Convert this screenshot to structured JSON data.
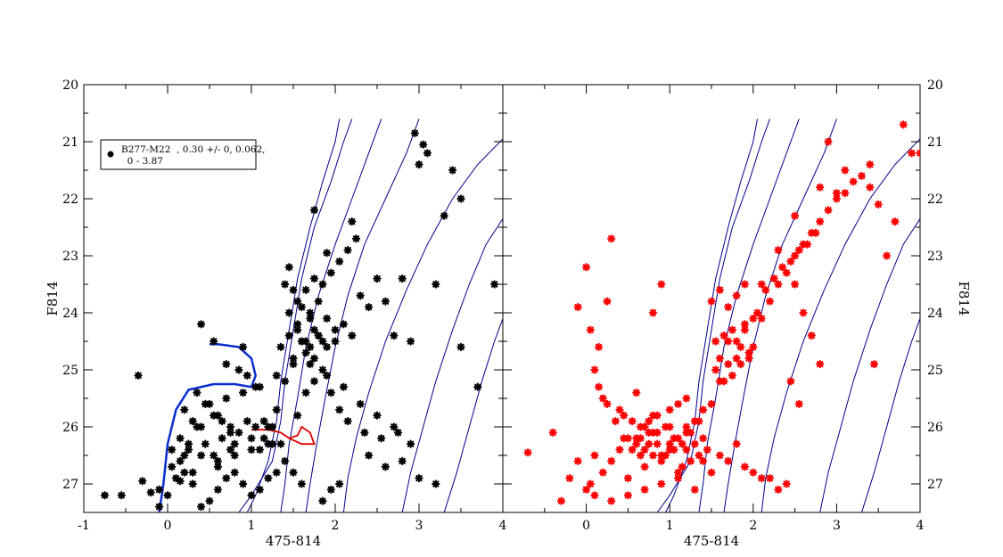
{
  "chart_data": [
    {
      "type": "scatter",
      "panel": "left",
      "xlabel": "475-814",
      "ylabel": "F814",
      "xlim": [
        -1,
        4
      ],
      "ylim": [
        27.5,
        20
      ],
      "xticks": [
        "-1",
        "0",
        "1",
        "2",
        "3",
        "4"
      ],
      "yticks": [
        "20",
        "21",
        "22",
        "23",
        "24",
        "25",
        "26",
        "27"
      ],
      "grid": false,
      "legend": {
        "position": "top-left",
        "lines": [
          "B277-M22  , 0.30 +/- 0, 0.062,",
          "  0 - 3.87"
        ]
      },
      "point_color": "#000000",
      "blue_track": [
        [
          -0.1,
          27.5
        ],
        [
          -0.05,
          27.0
        ],
        [
          0.0,
          26.3
        ],
        [
          0.1,
          25.7
        ],
        [
          0.25,
          25.35
        ],
        [
          0.55,
          25.25
        ],
        [
          0.8,
          25.25
        ],
        [
          1.0,
          25.3
        ],
        [
          1.05,
          25.1
        ],
        [
          1.0,
          24.8
        ],
        [
          0.85,
          24.6
        ],
        [
          0.6,
          24.55
        ],
        [
          0.5,
          24.55
        ]
      ],
      "red_track": [
        [
          1.0,
          26.05
        ],
        [
          1.2,
          26.05
        ],
        [
          1.35,
          26.1
        ],
        [
          1.45,
          26.2
        ],
        [
          1.55,
          26.15
        ],
        [
          1.6,
          26.0
        ],
        [
          1.7,
          26.1
        ],
        [
          1.75,
          26.3
        ],
        [
          1.6,
          26.3
        ],
        [
          1.45,
          26.2
        ]
      ],
      "x": [
        -0.75,
        -0.55,
        -0.3,
        -0.2,
        -0.1,
        -0.35,
        0.05,
        0.15,
        0.2,
        0.3,
        0.4,
        0.6,
        0.8,
        1.0,
        1.1,
        1.2,
        1.3,
        1.4,
        1.5,
        1.55,
        1.6,
        1.7,
        1.8,
        1.9,
        2.0,
        2.1,
        2.2,
        2.3,
        2.4,
        2.5,
        2.6,
        2.7,
        2.8,
        2.9,
        3.0,
        3.1,
        3.2,
        3.3,
        3.5,
        3.7,
        3.9,
        2.95,
        3.05,
        3.4,
        3.5,
        2.2,
        1.9,
        1.75,
        1.45,
        0.4,
        0.55,
        0.7,
        0.9,
        0.35,
        0.45,
        0.6,
        0.75,
        1.15,
        1.25,
        1.35,
        1.55,
        1.65,
        1.75,
        1.85,
        1.95,
        2.05,
        2.15,
        2.35,
        2.55,
        2.75,
        2.05,
        1.95,
        1.85,
        1.6,
        1.5,
        1.4,
        1.3,
        1.2,
        1.1,
        1.0,
        0.9,
        0.8,
        0.7,
        0.6,
        0.5,
        0.4,
        0.3,
        0.2,
        0.1,
        0.0,
        -0.1,
        0.85,
        0.95,
        1.05,
        1.45,
        1.55,
        1.65,
        1.75,
        1.85,
        1.95,
        2.05,
        2.15,
        2.25,
        0.15,
        0.25,
        0.35,
        0.45,
        0.55,
        0.65,
        0.75,
        0.85,
        0.95,
        1.05,
        1.15,
        1.25,
        0.2,
        0.3,
        0.5,
        0.7,
        0.9,
        1.1,
        1.3,
        1.5,
        1.7,
        1.9,
        2.1,
        2.3,
        2.5,
        2.7,
        2.9,
        1.6,
        1.7,
        1.8,
        1.65,
        1.75,
        1.85,
        1.55,
        1.45,
        1.35,
        1.65,
        1.75,
        1.6,
        1.7,
        1.8,
        1.9,
        2.0,
        1.5,
        1.4,
        2.4,
        2.6,
        2.8,
        3.0,
        3.2,
        0.05,
        0.15,
        0.25,
        0.6,
        0.8,
        1.0,
        1.2,
        0.4,
        0.55,
        0.65,
        0.75
      ],
      "y": [
        27.2,
        27.2,
        26.95,
        27.15,
        27.4,
        25.1,
        26.7,
        26.95,
        26.5,
        26.8,
        26.5,
        26.6,
        26.3,
        26.2,
        26.4,
        26.0,
        25.7,
        25.2,
        24.9,
        24.3,
        24.5,
        24.1,
        24.4,
        24.6,
        24.5,
        24.2,
        24.4,
        23.7,
        23.9,
        23.4,
        23.8,
        24.4,
        23.4,
        24.5,
        21.4,
        21.2,
        23.5,
        22.3,
        24.6,
        25.3,
        23.5,
        20.85,
        21.05,
        21.5,
        22.0,
        22.4,
        22.95,
        22.2,
        23.2,
        24.2,
        24.5,
        24.9,
        24.6,
        25.4,
        25.6,
        25.8,
        26.0,
        25.9,
        26.0,
        26.3,
        25.8,
        25.4,
        25.2,
        25.0,
        25.4,
        25.7,
        25.9,
        26.1,
        26.2,
        26.1,
        27.0,
        27.1,
        27.3,
        27.0,
        26.8,
        26.6,
        26.8,
        26.9,
        27.1,
        27.2,
        27.0,
        26.8,
        26.9,
        27.1,
        27.3,
        27.4,
        27.0,
        26.8,
        26.9,
        27.2,
        27.1,
        25.0,
        25.1,
        25.3,
        24.0,
        23.8,
        23.6,
        23.4,
        23.5,
        23.3,
        23.1,
        22.9,
        22.7,
        26.2,
        26.4,
        26.0,
        26.3,
        26.5,
        26.2,
        26.4,
        26.1,
        25.9,
        26.0,
        26.2,
        26.3,
        25.7,
        25.9,
        25.6,
        25.5,
        25.4,
        25.3,
        25.1,
        24.8,
        24.9,
        25.1,
        25.3,
        25.6,
        25.8,
        26.0,
        26.3,
        24.5,
        24.6,
        24.4,
        24.7,
        24.3,
        24.5,
        24.2,
        24.4,
        24.6,
        24.5,
        24.8,
        23.9,
        24.0,
        23.8,
        24.1,
        24.3,
        23.6,
        23.5,
        26.5,
        26.7,
        26.6,
        26.9,
        27.0,
        26.4,
        26.6,
        26.3,
        26.7,
        26.5,
        26.4,
        26.3,
        26.0,
        25.8,
        25.9,
        26.1
      ]
    },
    {
      "type": "scatter",
      "panel": "right",
      "xlabel": "475-814",
      "ylabel": "F814",
      "xlim": [
        -1,
        4
      ],
      "ylim": [
        27.5,
        20
      ],
      "xticks": [
        "0",
        "1",
        "2",
        "3",
        "4"
      ],
      "yticks": [
        "20",
        "21",
        "22",
        "23",
        "24",
        "25",
        "26",
        "27"
      ],
      "grid": false,
      "point_color": "#ff0000",
      "x": [
        -0.7,
        -0.4,
        -0.3,
        -0.2,
        -0.1,
        0.0,
        0.05,
        0.1,
        0.2,
        0.3,
        0.4,
        0.5,
        0.6,
        0.7,
        0.8,
        0.9,
        1.0,
        1.1,
        1.2,
        1.3,
        1.4,
        1.5,
        1.6,
        1.7,
        1.8,
        1.9,
        2.0,
        2.1,
        2.2,
        2.3,
        2.4,
        2.5,
        2.6,
        2.7,
        2.8,
        2.9,
        3.0,
        3.1,
        3.2,
        3.3,
        3.4,
        3.5,
        3.6,
        3.7,
        3.8,
        3.9,
        4.0,
        2.9,
        3.0,
        2.5,
        2.6,
        2.7,
        2.8,
        2.45,
        2.55,
        0.3,
        0.9,
        0.8,
        0.05,
        0.1,
        0.15,
        0.25,
        0.35,
        0.45,
        0.55,
        0.65,
        0.75,
        0.85,
        0.95,
        1.05,
        1.15,
        1.25,
        1.35,
        0.2,
        0.4,
        0.6,
        0.8,
        1.0,
        1.2,
        1.4,
        1.6,
        1.8,
        2.0,
        2.2,
        2.4,
        0.1,
        0.3,
        0.5,
        0.7,
        0.9,
        1.1,
        1.3,
        1.5,
        1.7,
        1.9,
        2.1,
        2.3,
        1.55,
        1.65,
        1.75,
        1.85,
        1.95,
        1.6,
        1.7,
        1.8,
        1.9,
        2.0,
        1.55,
        1.65,
        1.75,
        1.85,
        1.95,
        2.05,
        2.15,
        2.25,
        2.35,
        2.45,
        2.55,
        2.65,
        2.75,
        0.5,
        0.6,
        0.7,
        0.8,
        0.9,
        1.0,
        1.1,
        1.2,
        1.3,
        1.4,
        0.45,
        0.55,
        0.65,
        0.75,
        0.85,
        0.95,
        1.05,
        1.15,
        1.25,
        1.35,
        1.45,
        0.0,
        -0.1,
        0.15,
        0.25,
        2.1,
        2.3,
        2.5,
        2.8,
        3.1,
        3.4,
        3.45,
        1.7,
        1.8,
        1.9,
        1.6,
        1.5,
        0.65,
        0.7,
        0.75,
        0.85,
        1.0,
        1.1,
        1.2
      ],
      "y": [
        26.45,
        26.1,
        27.3,
        26.9,
        26.6,
        27.1,
        27.0,
        26.5,
        26.8,
        26.6,
        26.4,
        26.9,
        26.2,
        26.7,
        26.1,
        26.5,
        26.3,
        26.8,
        26.0,
        25.9,
        25.7,
        25.6,
        25.2,
        24.5,
        24.8,
        24.3,
        24.6,
        24.1,
        23.8,
        23.5,
        23.3,
        23.0,
        22.8,
        22.6,
        22.4,
        22.2,
        22.0,
        21.9,
        21.7,
        21.6,
        21.8,
        22.1,
        23.0,
        22.4,
        20.7,
        21.2,
        21.2,
        21.0,
        21.9,
        23.5,
        24.0,
        24.4,
        24.9,
        25.2,
        25.6,
        22.7,
        23.5,
        24.0,
        24.3,
        25.0,
        25.3,
        25.6,
        25.9,
        26.2,
        26.4,
        26.5,
        26.3,
        26.1,
        26.0,
        26.2,
        26.3,
        26.1,
        25.9,
        25.5,
        25.7,
        25.4,
        25.8,
        26.0,
        26.4,
        26.6,
        26.5,
        26.3,
        26.8,
        26.9,
        27.0,
        27.2,
        27.3,
        27.2,
        27.1,
        27.0,
        26.9,
        27.1,
        26.8,
        26.6,
        26.7,
        26.9,
        27.1,
        24.5,
        24.4,
        24.3,
        24.6,
        24.7,
        24.8,
        24.9,
        24.5,
        24.2,
        24.1,
        25.0,
        25.2,
        25.1,
        24.9,
        24.8,
        24.0,
        23.6,
        23.4,
        23.2,
        23.1,
        22.9,
        22.8,
        22.6,
        26.2,
        26.3,
        26.4,
        26.5,
        26.6,
        26.4,
        26.2,
        26.1,
        26.3,
        26.2,
        25.8,
        25.9,
        26.0,
        26.1,
        26.3,
        26.5,
        26.4,
        26.7,
        26.6,
        26.5,
        26.4,
        23.2,
        23.9,
        24.6,
        23.8,
        23.5,
        22.9,
        22.3,
        21.8,
        21.5,
        21.4,
        24.9,
        23.9,
        23.7,
        23.5,
        23.6,
        23.8,
        26.2,
        26.0,
        25.9,
        25.8,
        25.7,
        25.6,
        25.5
      ]
    }
  ],
  "isochrones": [
    [
      [
        0.95,
        27.5
      ],
      [
        1.05,
        27.2
      ],
      [
        1.2,
        26.6
      ],
      [
        1.3,
        25.9
      ],
      [
        1.35,
        25.2
      ],
      [
        1.45,
        24.3
      ],
      [
        1.55,
        23.4
      ],
      [
        1.7,
        22.5
      ],
      [
        1.85,
        21.7
      ],
      [
        2.0,
        21.0
      ],
      [
        2.05,
        20.6
      ]
    ],
    [
      [
        0.85,
        27.5
      ],
      [
        1.0,
        27.2
      ],
      [
        1.25,
        26.6
      ],
      [
        1.35,
        25.9
      ],
      [
        1.4,
        25.2
      ],
      [
        1.5,
        24.3
      ],
      [
        1.6,
        23.4
      ],
      [
        1.75,
        22.5
      ],
      [
        1.95,
        21.7
      ],
      [
        2.1,
        21.0
      ],
      [
        2.2,
        20.6
      ]
    ],
    [
      [
        1.35,
        27.5
      ],
      [
        1.4,
        27.0
      ],
      [
        1.45,
        26.3
      ],
      [
        1.55,
        25.5
      ],
      [
        1.65,
        24.6
      ],
      [
        1.8,
        23.7
      ],
      [
        2.0,
        22.8
      ],
      [
        2.2,
        22.0
      ],
      [
        2.4,
        21.2
      ],
      [
        2.55,
        20.6
      ]
    ],
    [
      [
        1.65,
        27.5
      ],
      [
        1.7,
        27.0
      ],
      [
        1.78,
        26.3
      ],
      [
        1.88,
        25.5
      ],
      [
        2.0,
        24.6
      ],
      [
        2.15,
        23.7
      ],
      [
        2.35,
        22.8
      ],
      [
        2.6,
        22.0
      ],
      [
        2.85,
        21.2
      ],
      [
        3.0,
        20.6
      ]
    ],
    [
      [
        2.1,
        27.5
      ],
      [
        2.15,
        26.9
      ],
      [
        2.25,
        26.2
      ],
      [
        2.4,
        25.4
      ],
      [
        2.6,
        24.5
      ],
      [
        2.85,
        23.6
      ],
      [
        3.1,
        22.8
      ],
      [
        3.4,
        22.0
      ],
      [
        3.7,
        21.4
      ],
      [
        4.0,
        20.95
      ]
    ],
    [
      [
        2.8,
        27.5
      ],
      [
        2.9,
        26.8
      ],
      [
        3.05,
        26.0
      ],
      [
        3.2,
        25.2
      ],
      [
        3.4,
        24.3
      ],
      [
        3.6,
        23.5
      ],
      [
        3.8,
        22.8
      ],
      [
        4.0,
        22.35
      ],
      [
        4.1,
        22.05
      ]
    ],
    [
      [
        3.3,
        27.5
      ],
      [
        3.45,
        26.8
      ],
      [
        3.6,
        26.0
      ],
      [
        3.75,
        25.2
      ],
      [
        3.9,
        24.5
      ],
      [
        4.0,
        24.1
      ],
      [
        4.1,
        23.6
      ],
      [
        4.2,
        23.2
      ]
    ]
  ]
}
